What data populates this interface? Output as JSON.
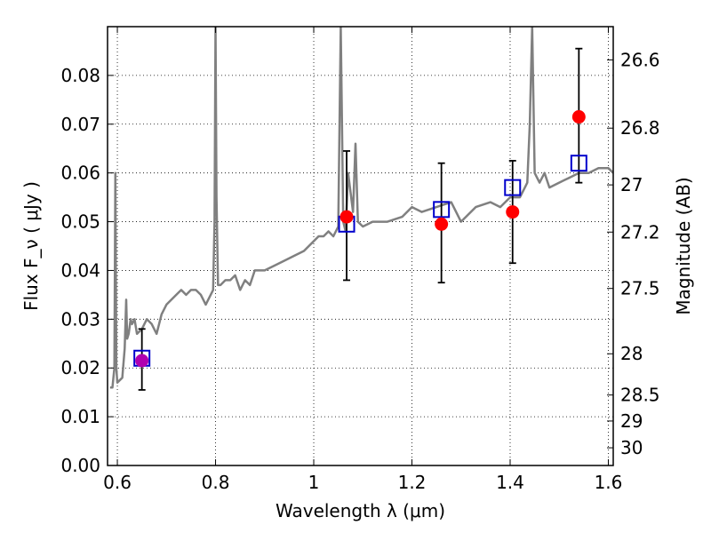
{
  "chart_data": {
    "type": "scatter",
    "xlabel": "Wavelength  λ (μm)",
    "ylabel": "Flux  F_ν  ( μJy )",
    "ylabel_right": "Magnitude (AB)",
    "xlim": [
      0.58,
      1.61
    ],
    "ylim": [
      0.0,
      0.09
    ],
    "grid": true,
    "x_ticks": [
      {
        "value": 0.6,
        "label": "0.6"
      },
      {
        "value": 0.8,
        "label": "0.8"
      },
      {
        "value": 1.0,
        "label": "1"
      },
      {
        "value": 1.2,
        "label": "1.2"
      },
      {
        "value": 1.4,
        "label": "1.4"
      },
      {
        "value": 1.6,
        "label": "1.6"
      }
    ],
    "y_ticks": [
      {
        "value": 0.0,
        "label": "0.00"
      },
      {
        "value": 0.01,
        "label": "0.01"
      },
      {
        "value": 0.02,
        "label": "0.02"
      },
      {
        "value": 0.03,
        "label": "0.03"
      },
      {
        "value": 0.04,
        "label": "0.04"
      },
      {
        "value": 0.05,
        "label": "0.05"
      },
      {
        "value": 0.06,
        "label": "0.06"
      },
      {
        "value": 0.07,
        "label": "0.07"
      },
      {
        "value": 0.08,
        "label": "0.08"
      }
    ],
    "right_ticks": [
      {
        "value": 26.6,
        "label": "26.6"
      },
      {
        "value": 26.8,
        "label": "26.8"
      },
      {
        "value": 27.0,
        "label": "27"
      },
      {
        "value": 27.2,
        "label": "27.2"
      },
      {
        "value": 27.5,
        "label": "27.5"
      },
      {
        "value": 28.0,
        "label": "28"
      },
      {
        "value": 28.5,
        "label": "28.5"
      },
      {
        "value": 29.0,
        "label": "29"
      },
      {
        "value": 30.0,
        "label": "30"
      }
    ],
    "series": [
      {
        "kind": "line",
        "color": "#808080",
        "x": [
          0.585,
          0.59,
          0.594,
          0.596,
          0.598,
          0.6,
          0.61,
          0.615,
          0.618,
          0.62,
          0.623,
          0.627,
          0.63,
          0.635,
          0.64,
          0.65,
          0.66,
          0.67,
          0.68,
          0.69,
          0.7,
          0.71,
          0.72,
          0.73,
          0.74,
          0.75,
          0.76,
          0.77,
          0.78,
          0.795,
          0.798,
          0.8,
          0.802,
          0.805,
          0.81,
          0.82,
          0.83,
          0.84,
          0.85,
          0.86,
          0.87,
          0.88,
          0.9,
          0.92,
          0.94,
          0.96,
          0.98,
          1.0,
          1.01,
          1.02,
          1.03,
          1.04,
          1.05,
          1.055,
          1.06,
          1.065,
          1.07,
          1.08,
          1.085,
          1.09,
          1.1,
          1.12,
          1.15,
          1.18,
          1.2,
          1.22,
          1.25,
          1.28,
          1.3,
          1.33,
          1.36,
          1.38,
          1.4,
          1.42,
          1.43,
          1.435,
          1.44,
          1.445,
          1.45,
          1.46,
          1.47,
          1.48,
          1.5,
          1.52,
          1.54,
          1.56,
          1.58,
          1.6,
          1.61
        ],
        "y": [
          0.016,
          0.016,
          0.02,
          0.06,
          0.02,
          0.017,
          0.018,
          0.024,
          0.034,
          0.026,
          0.027,
          0.03,
          0.029,
          0.03,
          0.027,
          0.028,
          0.03,
          0.029,
          0.027,
          0.031,
          0.033,
          0.034,
          0.035,
          0.036,
          0.035,
          0.036,
          0.036,
          0.035,
          0.033,
          0.036,
          0.05,
          0.09,
          0.055,
          0.037,
          0.037,
          0.038,
          0.038,
          0.039,
          0.036,
          0.038,
          0.037,
          0.04,
          0.04,
          0.041,
          0.042,
          0.043,
          0.044,
          0.046,
          0.047,
          0.047,
          0.048,
          0.047,
          0.049,
          0.09,
          0.05,
          0.048,
          0.06,
          0.052,
          0.066,
          0.05,
          0.049,
          0.05,
          0.05,
          0.051,
          0.053,
          0.052,
          0.053,
          0.054,
          0.05,
          0.053,
          0.054,
          0.053,
          0.055,
          0.055,
          0.057,
          0.058,
          0.07,
          0.09,
          0.06,
          0.058,
          0.06,
          0.057,
          0.058,
          0.059,
          0.06,
          0.06,
          0.061,
          0.061,
          0.06
        ]
      },
      {
        "kind": "observed",
        "color": "#ff0000",
        "x": [
          0.65,
          1.067,
          1.26,
          1.405,
          1.54
        ],
        "y": [
          0.0215,
          0.051,
          0.0495,
          0.052,
          0.0715
        ],
        "yerr_low": [
          0.0155,
          0.038,
          0.0375,
          0.0415,
          0.058
        ],
        "yerr_high": [
          0.028,
          0.0645,
          0.062,
          0.0625,
          0.0855
        ]
      },
      {
        "kind": "model_squares",
        "color": "#0000cc",
        "x": [
          0.65,
          1.067,
          1.26,
          1.405,
          1.54
        ],
        "y": [
          0.022,
          0.0495,
          0.0525,
          0.057,
          0.062
        ]
      }
    ]
  }
}
